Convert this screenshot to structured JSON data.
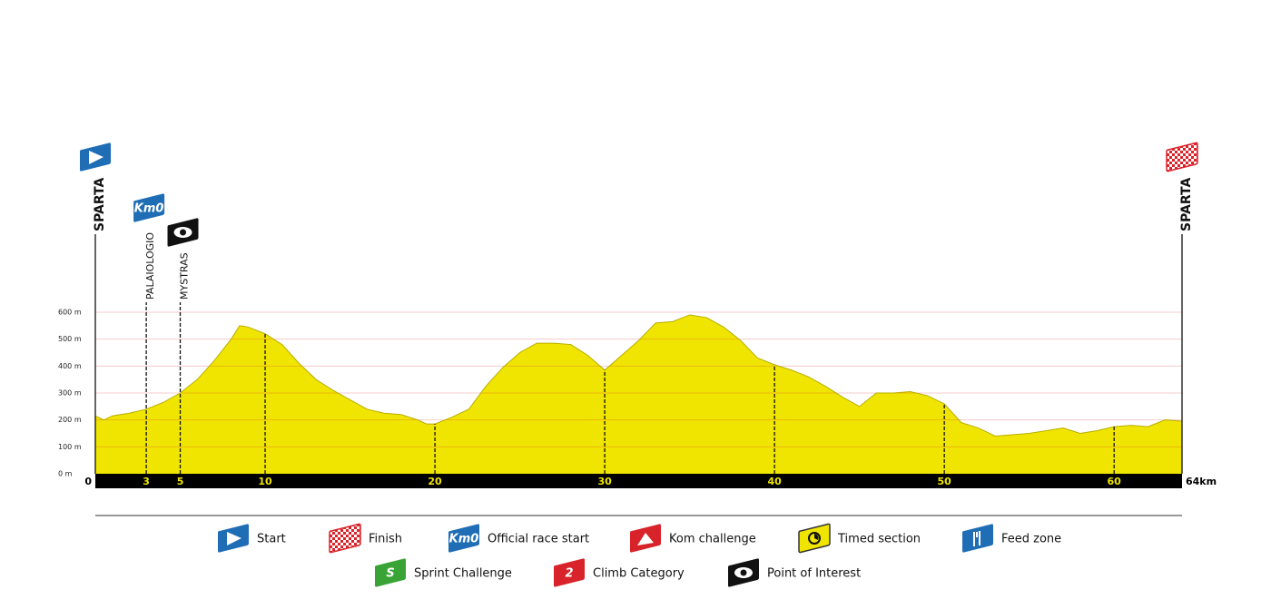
{
  "chart_data": {
    "type": "area",
    "color": "#f0e500",
    "x": [
      0,
      0.5,
      1,
      2,
      3,
      4,
      5,
      6,
      7,
      8,
      8.5,
      9,
      10,
      11,
      12,
      13,
      14,
      15,
      16,
      17,
      18,
      19,
      19.5,
      20,
      21,
      22,
      23,
      24,
      25,
      26,
      27,
      28,
      29,
      30,
      31,
      32,
      33,
      34,
      35,
      36,
      37,
      38,
      39,
      40,
      41,
      42,
      43,
      44,
      45,
      46,
      47,
      48,
      49,
      50,
      51,
      52,
      53,
      54,
      55,
      56,
      57,
      58,
      59,
      60,
      61,
      62,
      63,
      64
    ],
    "values": [
      215,
      200,
      215,
      225,
      240,
      265,
      300,
      350,
      420,
      500,
      550,
      545,
      520,
      480,
      410,
      350,
      310,
      275,
      240,
      225,
      220,
      200,
      185,
      185,
      210,
      240,
      325,
      395,
      450,
      485,
      485,
      480,
      440,
      385,
      440,
      495,
      560,
      565,
      590,
      580,
      545,
      495,
      430,
      405,
      385,
      360,
      325,
      285,
      250,
      300,
      300,
      305,
      290,
      260,
      190,
      170,
      140,
      145,
      150,
      160,
      170,
      150,
      160,
      175,
      180,
      175,
      200,
      195
    ],
    "xlim": [
      0,
      64
    ],
    "xticks": [
      0,
      3,
      5,
      10,
      20,
      30,
      40,
      50,
      60,
      {
        "value": 64,
        "label": "64km"
      }
    ],
    "ylim": [
      0,
      600
    ],
    "yticks": [
      {
        "value": 0,
        "label": "0 m"
      },
      {
        "value": 100,
        "label": "100 m"
      },
      {
        "value": 200,
        "label": "200 m"
      },
      {
        "value": 300,
        "label": "300 m"
      },
      {
        "value": 400,
        "label": "400 m"
      },
      {
        "value": 500,
        "label": "500 m"
      },
      {
        "value": 600,
        "label": "600 m"
      }
    ],
    "grid": true,
    "places": [
      {
        "km": 0,
        "name": "SPARTA",
        "icon": "start"
      },
      {
        "km": 3,
        "name": "PALAIOLOGIO",
        "icon": "km0",
        "icon_text": "Km0"
      },
      {
        "km": 5,
        "name": "MYSTRAS",
        "icon": "poi"
      },
      {
        "km": 64,
        "name": "SPARTA",
        "icon": "finish"
      }
    ]
  },
  "legend": [
    {
      "label": "Start",
      "icon": "start"
    },
    {
      "label": "Finish",
      "icon": "finish"
    },
    {
      "label": "Official race start",
      "icon": "km0",
      "icon_text": "Km0"
    },
    {
      "label": "Kom challenge",
      "icon": "kom"
    },
    {
      "label": "Timed section",
      "icon": "timed"
    },
    {
      "label": "Feed zone",
      "icon": "feed"
    },
    {
      "label": "Sprint Challenge",
      "icon": "sprint",
      "icon_text": "S"
    },
    {
      "label": "Climb Category",
      "icon": "climb",
      "icon_text": "2"
    },
    {
      "label": "Point of Interest",
      "icon": "poi"
    }
  ]
}
